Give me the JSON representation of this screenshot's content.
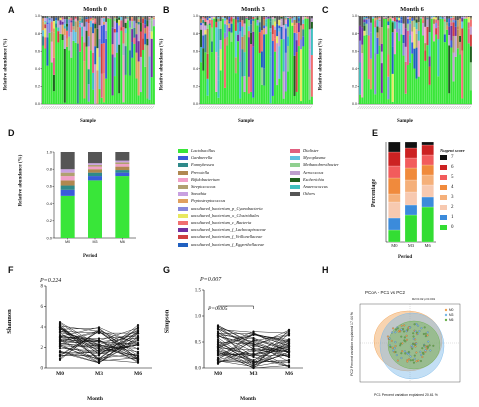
{
  "figure": {
    "panel_letters": [
      "A",
      "B",
      "C",
      "D",
      "E",
      "F",
      "G",
      "H"
    ]
  },
  "chart_data": [
    {
      "panel": "A",
      "type": "bar",
      "title": "Month 0",
      "xlabel": "Sample",
      "ylabel": "Relative abundance (%)",
      "ylim": [
        0,
        1.0
      ],
      "yticks": [
        "0.0",
        "0.2",
        "0.4",
        "0.6",
        "0.8",
        "1.0"
      ],
      "n_samples": 52,
      "stacked": true
    },
    {
      "panel": "B",
      "type": "bar",
      "title": "Month 3",
      "xlabel": "Sample",
      "ylabel": "Relative abundance (%)",
      "ylim": [
        0,
        1.0
      ],
      "yticks": [
        "0.0",
        "0.2",
        "0.4",
        "0.6",
        "0.8",
        "1.0"
      ],
      "n_samples": 52,
      "stacked": true
    },
    {
      "panel": "C",
      "type": "bar",
      "title": "Month 6",
      "xlabel": "Sample",
      "ylabel": "Relative abundance (%)",
      "ylim": [
        0,
        1.0
      ],
      "yticks": [
        "0.0",
        "0.2",
        "0.4",
        "0.6",
        "0.8",
        "1.0"
      ],
      "n_samples": 52,
      "stacked": true
    },
    {
      "panel": "D",
      "type": "bar",
      "stacked": true,
      "xlabel": "Period",
      "ylabel": "Relative abundance (%)",
      "ylim": [
        0,
        1.0
      ],
      "yticks": [
        "0.0",
        "0.2",
        "0.4",
        "0.6",
        "0.8",
        "1.0"
      ],
      "categories": [
        "M0",
        "M3",
        "M6"
      ],
      "series": [
        {
          "name": "Lactobacillus",
          "color": "#39e639",
          "values": [
            0.49,
            0.67,
            0.72
          ]
        },
        {
          "name": "Gardnerella",
          "color": "#3b5bdb",
          "values": [
            0.07,
            0.05,
            0.04
          ]
        },
        {
          "name": "Fannyhessea",
          "color": "#2f8a8a",
          "values": [
            0.05,
            0.04,
            0.03
          ]
        },
        {
          "name": "Prevotella",
          "color": "#b08850",
          "values": [
            0.06,
            0.04,
            0.04
          ]
        },
        {
          "name": "Bifidobacterium",
          "color": "#f0a0c8",
          "values": [
            0.05,
            0.03,
            0.03
          ]
        },
        {
          "name": "Streptococcus",
          "color": "#b0a070",
          "values": [
            0.04,
            0.02,
            0.02
          ]
        },
        {
          "name": "Sneathia",
          "color": "#c8a0e0",
          "values": [
            0.04,
            0.02,
            0.02
          ]
        },
        {
          "name": "Others",
          "color": "#555555",
          "values": [
            0.2,
            0.13,
            0.1
          ]
        }
      ]
    },
    {
      "panel": "E",
      "type": "bar",
      "stacked": true,
      "xlabel": "Period",
      "ylabel": "Percentage",
      "ylim": [
        0,
        1.0
      ],
      "categories": [
        "M0",
        "M3",
        "M6"
      ],
      "legend_title": "Nugent score",
      "series": [
        {
          "name": "0",
          "color": "#33dd33",
          "values": [
            0.12,
            0.27,
            0.35
          ]
        },
        {
          "name": "1",
          "color": "#3b8bdb",
          "values": [
            0.12,
            0.1,
            0.1
          ]
        },
        {
          "name": "2",
          "color": "#f7c9b0",
          "values": [
            0.16,
            0.13,
            0.12
          ]
        },
        {
          "name": "3",
          "color": "#f5b07a",
          "values": [
            0.08,
            0.12,
            0.1
          ]
        },
        {
          "name": "4",
          "color": "#f08a3c",
          "values": [
            0.16,
            0.12,
            0.1
          ]
        },
        {
          "name": "5",
          "color": "#f25c5c",
          "values": [
            0.12,
            0.1,
            0.1
          ]
        },
        {
          "name": "6",
          "color": "#cc2222",
          "values": [
            0.14,
            0.1,
            0.1
          ]
        },
        {
          "name": "7",
          "color": "#111111",
          "values": [
            0.1,
            0.06,
            0.03
          ]
        }
      ]
    },
    {
      "panel": "F",
      "type": "line",
      "xlabel": "Month",
      "ylabel": "Shannon",
      "categories": [
        "M0",
        "M3",
        "M6"
      ],
      "ylim": [
        0,
        8
      ],
      "yticks": [
        "0",
        "2",
        "4",
        "6",
        "8"
      ],
      "annotation": "P=0.224"
    },
    {
      "panel": "G",
      "type": "line",
      "xlabel": "Month",
      "ylabel": "Simpson",
      "categories": [
        "M0",
        "M3",
        "M6"
      ],
      "ylim": [
        0,
        1.5
      ],
      "yticks": [
        "0.0",
        "0.5",
        "1.0",
        "1.5"
      ],
      "annotation_top": "P=0.007",
      "annotation_bracket": "P=0.005"
    },
    {
      "panel": "H",
      "type": "scatter",
      "title": "PCoA - PC1 vs PC2",
      "subtitle": "R2=0.02 p=0.001",
      "xlabel": "PC1 Percent variation explained 20.61 %",
      "ylabel": "PC2 Percent variation explained 17.44 %",
      "series": [
        {
          "name": "M0",
          "color": "#f0a050"
        },
        {
          "name": "M3",
          "color": "#7ab8e8"
        },
        {
          "name": "M6",
          "color": "#6ab04c"
        }
      ]
    }
  ],
  "legend_d": [
    {
      "name": "Lactobacillus",
      "color": "#39e639"
    },
    {
      "name": "Gardnerella",
      "color": "#3b5bdb"
    },
    {
      "name": "Fannyhessea",
      "color": "#2f8a8a"
    },
    {
      "name": "Prevotella",
      "color": "#b08850"
    },
    {
      "name": "Bifidobacterium",
      "color": "#f0a0c8"
    },
    {
      "name": "Streptococcus",
      "color": "#b0a070"
    },
    {
      "name": "Sneathia",
      "color": "#c8a0e0"
    },
    {
      "name": "Peptostreptococcus",
      "color": "#e0a060"
    },
    {
      "name": "uncultured_bacterium_p_Cyanobacteria",
      "color": "#8888dd"
    },
    {
      "name": "uncultured_bacterium_o_Clostridiales",
      "color": "#e8e860"
    },
    {
      "name": "uncultured_bacterium_c_Bacteria",
      "color": "#f07070"
    },
    {
      "name": "uncultured_bacterium_f_Lachnospiraceae",
      "color": "#7030a0"
    },
    {
      "name": "uncultured_bacterium_f_Veillonellaceae",
      "color": "#d04040"
    },
    {
      "name": "uncultured_bacterium_f_Eggerthellaceae",
      "color": "#2060c0"
    },
    {
      "name": "Dialister",
      "color": "#e06080"
    },
    {
      "name": "Mycoplasma",
      "color": "#60c0e0"
    },
    {
      "name": "Methanobrevibacter",
      "color": "#90d090"
    },
    {
      "name": "Aerococcus",
      "color": "#c0a0d0"
    },
    {
      "name": "Escherichia",
      "color": "#206020"
    },
    {
      "name": "Anaerococcus",
      "color": "#40c0c0"
    },
    {
      "name": "Others",
      "color": "#555555"
    }
  ]
}
